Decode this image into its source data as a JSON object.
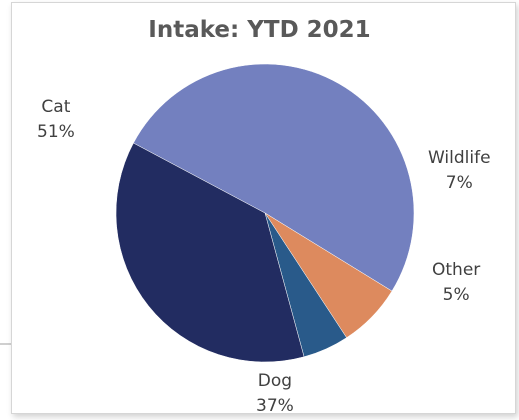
{
  "chart_data": {
    "type": "pie",
    "title": "Intake: YTD 2021",
    "slices": [
      {
        "label": "Cat",
        "value": 51,
        "value_label": "51%",
        "color": "#7380bf"
      },
      {
        "label": "Wildlife",
        "value": 7,
        "value_label": "7%",
        "color": "#dd8a5e"
      },
      {
        "label": "Other",
        "value": 5,
        "value_label": "5%",
        "color": "#295a8a"
      },
      {
        "label": "Dog",
        "value": 37,
        "value_label": "37%",
        "color": "#222c61"
      }
    ],
    "legend": "none",
    "labels": "outside"
  }
}
